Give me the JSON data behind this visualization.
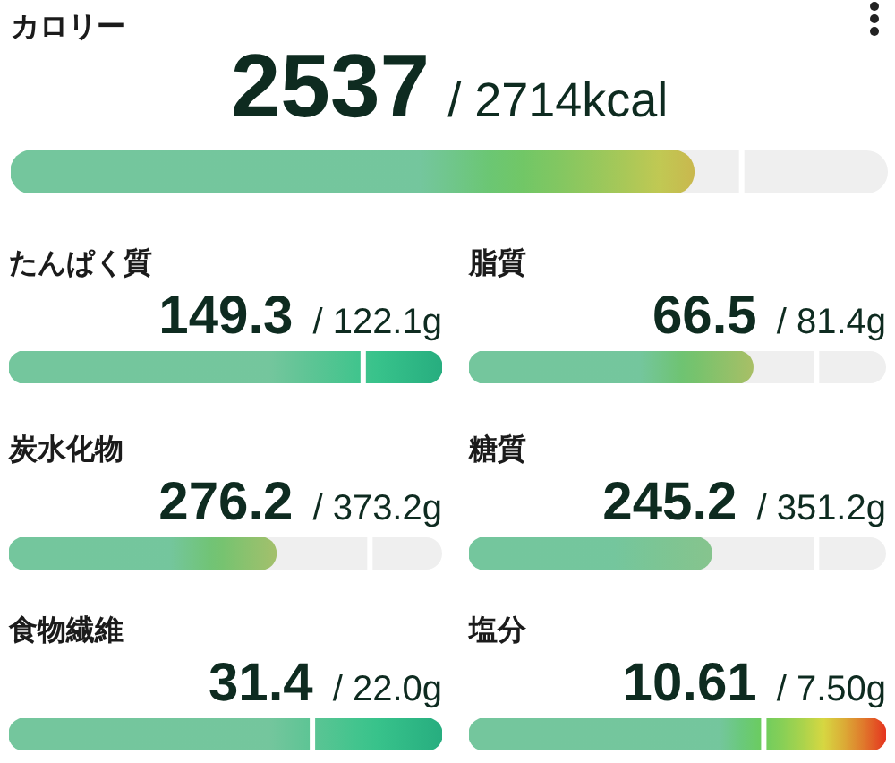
{
  "chart_data": [
    {
      "type": "other",
      "title": "カロリー",
      "values": [
        2537,
        2714
      ],
      "value_labels": [
        "2537",
        "/ 2714kcal"
      ],
      "colors": [
        "#c9b84e",
        "#ffffff"
      ]
    },
    {
      "type": "other",
      "title": "たんぱく質",
      "values": [
        149.3,
        122.1
      ],
      "value_labels": [
        "149.3",
        "/ 122.1g"
      ],
      "colors": [
        "#27ad7f",
        "#ffffff"
      ]
    },
    {
      "type": "other",
      "title": "脂質",
      "values": [
        66.5,
        81.4
      ],
      "value_labels": [
        "66.5",
        "/ 81.4g"
      ],
      "colors": [
        "#a8bf66",
        "#ffffff"
      ]
    },
    {
      "type": "other",
      "title": "炭水化物",
      "values": [
        276.2,
        373.2
      ],
      "value_labels": [
        "276.2",
        "/ 373.2g"
      ],
      "colors": [
        "#a3c06c",
        "#ffffff"
      ]
    },
    {
      "type": "other",
      "title": "糖質",
      "values": [
        245.2,
        351.2
      ],
      "value_labels": [
        "245.2",
        "/ 351.2g"
      ],
      "colors": [
        "#86c48e",
        "#ffffff"
      ]
    },
    {
      "type": "other",
      "title": "食物繊維",
      "values": [
        31.4,
        22.0
      ],
      "value_labels": [
        "31.4",
        "/ 22.0g"
      ],
      "colors": [
        "#27ad7f",
        "#ffffff"
      ]
    },
    {
      "type": "other",
      "title": "塩分",
      "values": [
        10.61,
        7.5
      ],
      "value_labels": [
        "10.61",
        "/ 7.50g"
      ],
      "colors": [
        "#e5341f",
        "#ffffff"
      ]
    }
  ]
}
